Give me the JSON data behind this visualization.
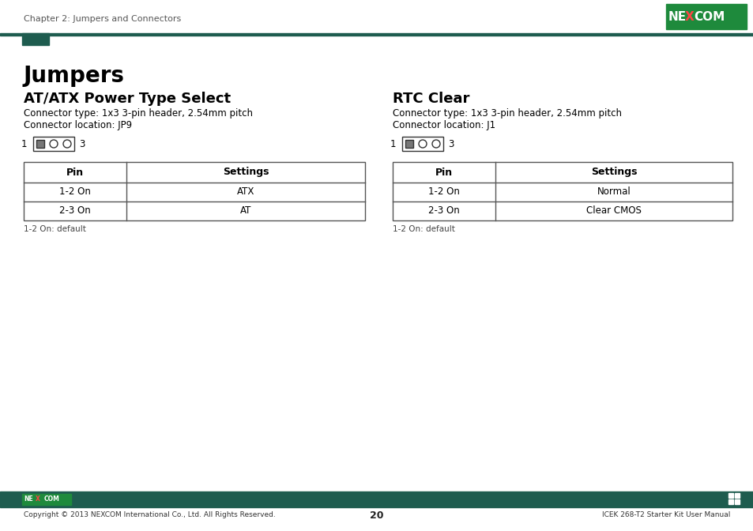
{
  "page_header_text": "Chapter 2: Jumpers and Connectors",
  "page_number": "20",
  "footer_left": "Copyright © 2013 NEXCOM International Co., Ltd. All Rights Reserved.",
  "footer_right": "ICEK 268-T2 Starter Kit User Manual",
  "main_title": "Jumpers",
  "header_bar_color": "#1e5c4f",
  "nexcom_green": "#1e8a3c",
  "nexcom_dark": "#1e5c4f",
  "left_section_title": "AT/ATX Power Type Select",
  "left_connector_type": "Connector type: 1x3 3-pin header, 2.54mm pitch",
  "left_connector_loc": "Connector location: JP9",
  "left_table_headers": [
    "Pin",
    "Settings"
  ],
  "left_table_rows": [
    [
      "1-2 On",
      "ATX"
    ],
    [
      "2-3 On",
      "AT"
    ]
  ],
  "left_table_note": "1-2 On: default",
  "right_section_title": "RTC Clear",
  "right_connector_type": "Connector type: 1x3 3-pin header, 2.54mm pitch",
  "right_connector_loc": "Connector location: J1",
  "right_table_headers": [
    "Pin",
    "Settings"
  ],
  "right_table_rows": [
    [
      "1-2 On",
      "Normal"
    ],
    [
      "2-3 On",
      "Clear CMOS"
    ]
  ],
  "right_table_note": "1-2 On: default",
  "bg_color": "#ffffff",
  "text_color": "#000000",
  "table_border_color": "#555555",
  "header_text_color": "#555555",
  "note_text_color": "#444444"
}
